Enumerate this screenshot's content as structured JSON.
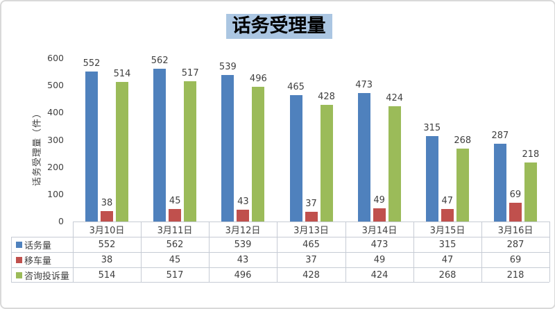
{
  "chart": {
    "title_bg_color": "#ABC6E2",
    "border_color": "#D9D9D9",
    "grid_color": "#C6CBD4",
    "text_color": "#3F3F3F"
  },
  "chart_data": {
    "type": "bar",
    "title": "话务受理量",
    "xlabel": "",
    "ylabel": "话务受理量（件）",
    "categories": [
      "3月10日",
      "3月11日",
      "3月12日",
      "3月13日",
      "3月14日",
      "3月15日",
      "3月16日"
    ],
    "series": [
      {
        "name": "话务量",
        "color": "#4F81BD",
        "values": [
          552,
          562,
          539,
          465,
          473,
          315,
          287
        ]
      },
      {
        "name": "移车量",
        "color": "#C0504D",
        "values": [
          38,
          45,
          43,
          37,
          49,
          47,
          69
        ]
      },
      {
        "name": "咨询投诉量",
        "color": "#9BBB59",
        "values": [
          514,
          517,
          496,
          428,
          424,
          268,
          218
        ]
      }
    ],
    "ylim": [
      0,
      600
    ],
    "y_ticks": [
      0,
      100,
      200,
      300,
      400,
      500,
      600
    ],
    "grid": false,
    "data_labels": true,
    "legend_position": "data-table-left",
    "data_table": true
  }
}
